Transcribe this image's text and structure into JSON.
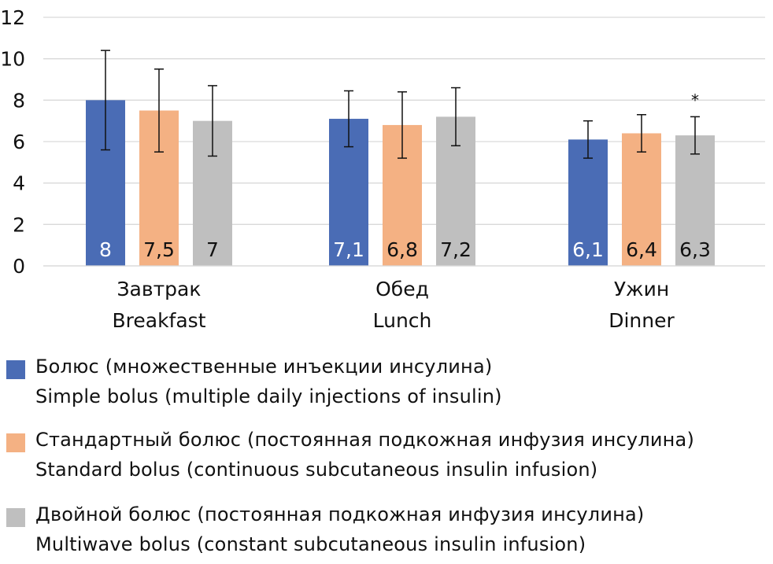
{
  "chart_data": {
    "type": "bar",
    "title": "",
    "xlabel": "",
    "ylabel": "",
    "ylim": [
      0,
      12
    ],
    "yticks": [
      0,
      2,
      4,
      6,
      8,
      10,
      12
    ],
    "grid": true,
    "legend_position": "bottom",
    "categories": [
      {
        "ru": "Завтрак",
        "en": "Breakfast"
      },
      {
        "ru": "Обед",
        "en": "Lunch"
      },
      {
        "ru": "Ужин",
        "en": "Dinner"
      }
    ],
    "series": [
      {
        "name_ru": "Болюс (множественные инъекции инсулина)",
        "name_en": "Simple bolus (multiple daily injections of insulin)",
        "color": "#4a6cb5",
        "label_color": "#ffffff",
        "values": [
          8,
          7.1,
          6.1
        ],
        "labels": [
          "8",
          "7,1",
          "6,1"
        ],
        "errors": [
          2.4,
          1.35,
          0.9
        ]
      },
      {
        "name_ru": "Стандартный болюс (постоянная подкожная инфузия инсулина)",
        "name_en": "Standard bolus (continuous subcutaneous insulin infusion)",
        "color": "#f4b183",
        "label_color": "#111111",
        "values": [
          7.5,
          6.8,
          6.4
        ],
        "labels": [
          "7,5",
          "6,8",
          "6,4"
        ],
        "errors": [
          2.0,
          1.6,
          0.9
        ]
      },
      {
        "name_ru": "Двойной болюс (постоянная подкожная инфузия инсулина)",
        "name_en": "Multiwave bolus (constant subcutaneous insulin infusion)",
        "color": "#bfbfbf",
        "label_color": "#111111",
        "values": [
          7,
          7.2,
          6.3
        ],
        "labels": [
          "7",
          "7,2",
          "6,3"
        ],
        "errors": [
          1.7,
          1.4,
          0.9
        ]
      }
    ],
    "annotations": [
      {
        "text": "*",
        "series": 2,
        "category": 2
      }
    ]
  }
}
